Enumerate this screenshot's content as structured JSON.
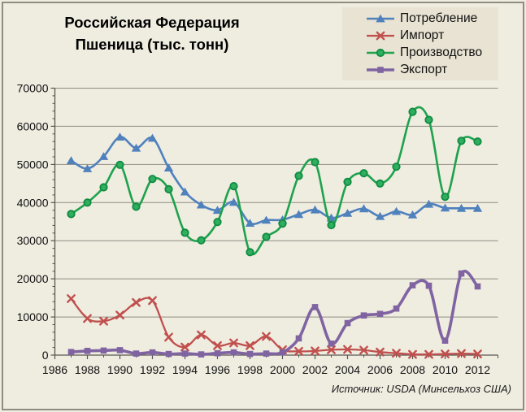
{
  "chart": {
    "title_line1": "Российская Федерация",
    "title_line2": "Пшеница (тыс. тонн)",
    "source": "Источник: USDA (Минсельхоз США)"
  },
  "chart_data": {
    "type": "line",
    "title": "Российская Федерация Пшеница (тыс. тонн)",
    "xlabel": "",
    "ylabel": "",
    "x": [
      1987,
      1988,
      1989,
      1990,
      1991,
      1992,
      1993,
      1994,
      1995,
      1996,
      1997,
      1998,
      1999,
      2000,
      2001,
      2002,
      2003,
      2004,
      2005,
      2006,
      2007,
      2008,
      2009,
      2010,
      2011,
      2012
    ],
    "series": [
      {
        "key": "consumption",
        "name": "Потребление",
        "color": "#4f81bd",
        "marker": "triangle",
        "marker_fill": "#4f81bd",
        "marker_stroke": "#3a6496",
        "width": 2.6,
        "values": [
          51000,
          48900,
          52100,
          57200,
          54300,
          56900,
          49100,
          42800,
          39400,
          38000,
          40100,
          34600,
          35400,
          35500,
          36900,
          38100,
          36000,
          37200,
          38400,
          36400,
          37700,
          36800,
          39600,
          38600,
          38500,
          38500
        ]
      },
      {
        "key": "import",
        "name": "Импорт",
        "color": "#c0504d",
        "marker": "x",
        "marker_fill": "#c0504d",
        "marker_stroke": "#c0504d",
        "width": 2.3,
        "values": [
          14800,
          9600,
          8900,
          10500,
          13800,
          14300,
          4700,
          2100,
          5300,
          2500,
          3200,
          2500,
          4900,
          1400,
          1000,
          1100,
          1400,
          1500,
          1300,
          800,
          500,
          200,
          200,
          300,
          400,
          300
        ]
      },
      {
        "key": "production",
        "name": "Производство",
        "color": "#1fa24d",
        "marker": "circle",
        "marker_fill": "#2fae60",
        "marker_stroke": "#0f8c40",
        "width": 2.6,
        "values": [
          37000,
          40000,
          44000,
          49900,
          38900,
          46200,
          43500,
          32100,
          30100,
          34900,
          44300,
          27000,
          31000,
          34500,
          47000,
          50600,
          34100,
          45400,
          47700,
          45000,
          49400,
          63800,
          61700,
          41500,
          56200,
          56000
        ]
      },
      {
        "key": "export",
        "name": "Экспорт",
        "color": "#8064a2",
        "marker": "square",
        "marker_fill": "#8064a2",
        "marker_stroke": "#8064a2",
        "width": 3.6,
        "values": [
          800,
          1100,
          1200,
          1300,
          400,
          700,
          300,
          400,
          200,
          500,
          700,
          300,
          400,
          700,
          4400,
          12600,
          3000,
          8400,
          10400,
          10800,
          12200,
          18300,
          18200,
          3800,
          21400,
          18000
        ]
      }
    ],
    "xlim": [
      1986,
      2013.25
    ],
    "ylim": [
      0,
      70000
    ],
    "x_ticks": [
      1986,
      1988,
      1990,
      1992,
      1994,
      1996,
      1998,
      2000,
      2002,
      2004,
      2006,
      2008,
      2010,
      2012
    ],
    "y_ticks": [
      0,
      10000,
      20000,
      30000,
      40000,
      50000,
      60000,
      70000
    ],
    "x_minor_step": 1,
    "y_minor_step": 2000,
    "grid": "horizontal",
    "legend_position": "top-right",
    "style": {
      "background": "#efece0",
      "legend_background": "#e8e3d2",
      "grid_color": "#8f8d82",
      "axis_color": "#595751",
      "text_color": "#111111",
      "border_color": "#8f8d82"
    }
  }
}
